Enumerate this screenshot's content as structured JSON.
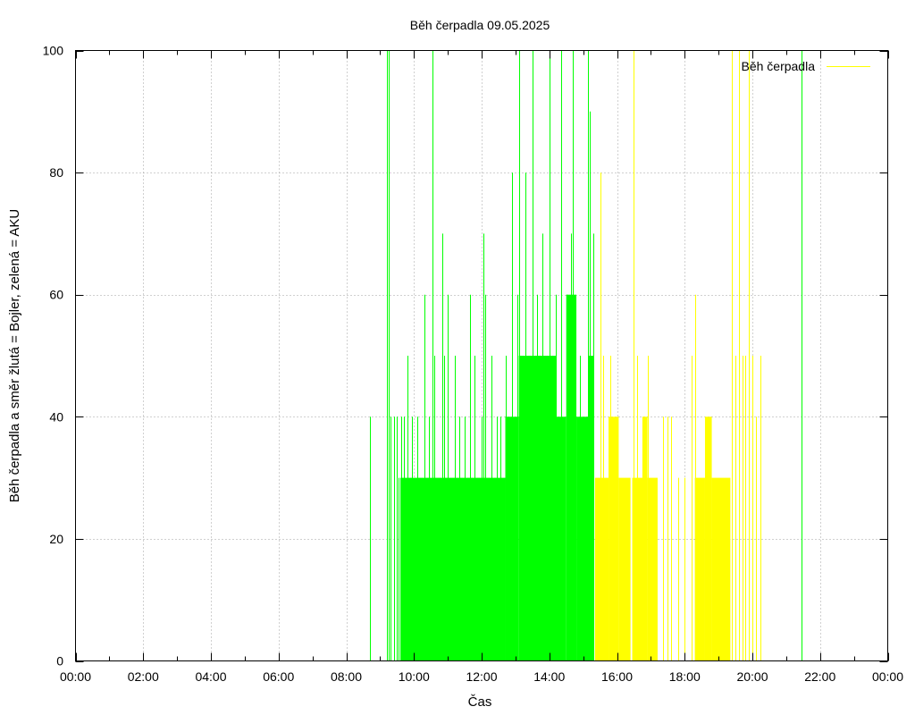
{
  "chart_data": {
    "type": "area",
    "title": "Běh čerpadla 09.05.2025",
    "xlabel": "Čas",
    "ylabel": "Běh čerpadla a směr žlutá = Bojler, zelená = AKU",
    "xlim": [
      0,
      24
    ],
    "ylim": [
      0,
      100
    ],
    "x_ticks": [
      0,
      2,
      4,
      6,
      8,
      10,
      12,
      14,
      16,
      18,
      20,
      22,
      24
    ],
    "x_tick_labels": [
      "00:00",
      "02:00",
      "04:00",
      "06:00",
      "08:00",
      "10:00",
      "12:00",
      "14:00",
      "16:00",
      "18:00",
      "20:00",
      "22:00",
      "00:00"
    ],
    "y_ticks": [
      0,
      20,
      40,
      60,
      80,
      100
    ],
    "y_tick_labels": [
      "0",
      "20",
      "40",
      "60",
      "80",
      "100"
    ],
    "grid": true,
    "legend": {
      "label": "Běh čerpadla",
      "position": "top-right",
      "color": "#ffff00"
    },
    "colors": {
      "aku": "#00ff00",
      "bojler": "#ffff00"
    },
    "series": [
      {
        "name": "AKU",
        "color": "#00ff00",
        "blocks": [
          {
            "start": 9.6,
            "end": 12.7,
            "value": 30
          },
          {
            "start": 12.7,
            "end": 13.1,
            "value": 40
          },
          {
            "start": 13.1,
            "end": 14.2,
            "value": 50
          },
          {
            "start": 13.6,
            "end": 13.85,
            "value": 40
          },
          {
            "start": 14.2,
            "end": 14.5,
            "value": 40
          },
          {
            "start": 14.5,
            "end": 14.8,
            "value": 60
          },
          {
            "start": 14.8,
            "end": 15.15,
            "value": 40
          },
          {
            "start": 15.15,
            "end": 15.3,
            "value": 50
          }
        ],
        "spikes": [
          {
            "x": 8.7,
            "value": 40
          },
          {
            "x": 9.2,
            "value": 100
          },
          {
            "x": 9.26,
            "value": 100
          },
          {
            "x": 9.3,
            "value": 40
          },
          {
            "x": 9.4,
            "value": 40
          },
          {
            "x": 9.5,
            "value": 40
          },
          {
            "x": 9.55,
            "value": 30
          },
          {
            "x": 9.62,
            "value": 40
          },
          {
            "x": 9.7,
            "value": 40
          },
          {
            "x": 9.8,
            "value": 50
          },
          {
            "x": 9.95,
            "value": 40
          },
          {
            "x": 10.1,
            "value": 40
          },
          {
            "x": 10.3,
            "value": 60
          },
          {
            "x": 10.45,
            "value": 40
          },
          {
            "x": 10.55,
            "value": 100
          },
          {
            "x": 10.6,
            "value": 50
          },
          {
            "x": 10.85,
            "value": 70
          },
          {
            "x": 10.9,
            "value": 50
          },
          {
            "x": 11.0,
            "value": 60
          },
          {
            "x": 11.2,
            "value": 50
          },
          {
            "x": 11.35,
            "value": 40
          },
          {
            "x": 11.5,
            "value": 40
          },
          {
            "x": 11.65,
            "value": 60
          },
          {
            "x": 11.8,
            "value": 50
          },
          {
            "x": 12.0,
            "value": 40
          },
          {
            "x": 12.05,
            "value": 70
          },
          {
            "x": 12.1,
            "value": 60
          },
          {
            "x": 12.3,
            "value": 50
          },
          {
            "x": 12.45,
            "value": 40
          },
          {
            "x": 12.55,
            "value": 40
          },
          {
            "x": 12.7,
            "value": 50
          },
          {
            "x": 12.9,
            "value": 80
          },
          {
            "x": 13.05,
            "value": 60
          },
          {
            "x": 13.1,
            "value": 100
          },
          {
            "x": 13.3,
            "value": 80
          },
          {
            "x": 13.5,
            "value": 100
          },
          {
            "x": 13.65,
            "value": 60
          },
          {
            "x": 13.8,
            "value": 70
          },
          {
            "x": 14.0,
            "value": 100
          },
          {
            "x": 14.2,
            "value": 60
          },
          {
            "x": 14.35,
            "value": 100
          },
          {
            "x": 14.5,
            "value": 60
          },
          {
            "x": 14.65,
            "value": 70
          },
          {
            "x": 14.7,
            "value": 100
          },
          {
            "x": 14.9,
            "value": 50
          },
          {
            "x": 15.15,
            "value": 100
          },
          {
            "x": 15.2,
            "value": 90
          },
          {
            "x": 15.3,
            "value": 70
          },
          {
            "x": 21.45,
            "value": 100
          }
        ]
      },
      {
        "name": "Bojler",
        "color": "#ffff00",
        "blocks": [
          {
            "start": 15.35,
            "end": 15.75,
            "value": 30
          },
          {
            "start": 15.75,
            "end": 16.05,
            "value": 40
          },
          {
            "start": 16.05,
            "end": 16.4,
            "value": 30
          },
          {
            "start": 16.45,
            "end": 16.9,
            "value": 30
          },
          {
            "start": 16.75,
            "end": 16.9,
            "value": 40
          },
          {
            "start": 16.9,
            "end": 17.2,
            "value": 30
          },
          {
            "start": 18.3,
            "end": 18.6,
            "value": 30
          },
          {
            "start": 18.6,
            "end": 18.8,
            "value": 40
          },
          {
            "start": 18.8,
            "end": 19.35,
            "value": 30
          }
        ],
        "spikes": [
          {
            "x": 15.5,
            "value": 80
          },
          {
            "x": 15.6,
            "value": 50
          },
          {
            "x": 15.8,
            "value": 50
          },
          {
            "x": 16.5,
            "value": 100
          },
          {
            "x": 16.6,
            "value": 50
          },
          {
            "x": 16.9,
            "value": 50
          },
          {
            "x": 17.35,
            "value": 40
          },
          {
            "x": 17.5,
            "value": 40
          },
          {
            "x": 17.6,
            "value": 40
          },
          {
            "x": 17.8,
            "value": 30
          },
          {
            "x": 18.0,
            "value": 30
          },
          {
            "x": 18.2,
            "value": 50
          },
          {
            "x": 18.3,
            "value": 60
          },
          {
            "x": 19.4,
            "value": 100
          },
          {
            "x": 19.5,
            "value": 50
          },
          {
            "x": 19.6,
            "value": 100
          },
          {
            "x": 19.7,
            "value": 50
          },
          {
            "x": 19.8,
            "value": 50
          },
          {
            "x": 19.9,
            "value": 100
          },
          {
            "x": 20.0,
            "value": 50
          },
          {
            "x": 20.1,
            "value": 40
          },
          {
            "x": 20.25,
            "value": 50
          }
        ]
      }
    ]
  }
}
